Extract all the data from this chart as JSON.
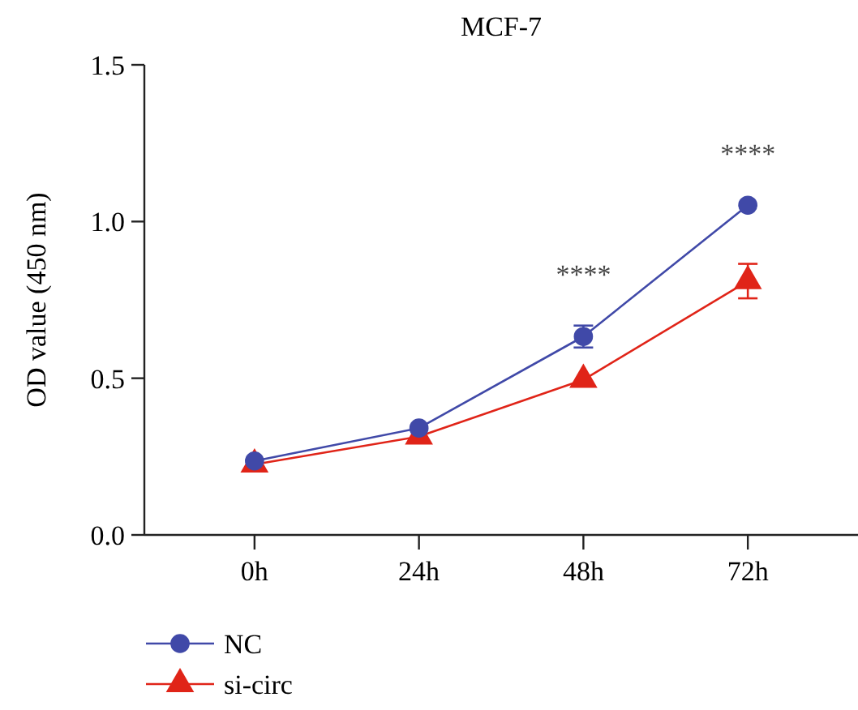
{
  "chart_data": {
    "type": "line",
    "title": "MCF-7",
    "ylabel": "OD value (450 nm)",
    "categories": [
      "0h",
      "24h",
      "48h",
      "72h"
    ],
    "series": [
      {
        "name": "NC",
        "color": "#4049a8",
        "values": [
          0.236,
          0.341,
          0.633,
          1.052
        ],
        "errors": [
          null,
          null,
          0.035,
          null
        ],
        "marker": "circle"
      },
      {
        "name": "si-circ",
        "color": "#e02418",
        "values": [
          0.225,
          0.314,
          0.495,
          0.81
        ],
        "errors": [
          null,
          null,
          null,
          0.055
        ],
        "marker": "triangle"
      }
    ],
    "ylim": [
      0,
      1.5
    ],
    "yticks": [
      {
        "value": 0,
        "label": "0.0"
      },
      {
        "value": 0.5,
        "label": "0.5"
      },
      {
        "value": 1,
        "label": "1.0"
      },
      {
        "value": 1.5,
        "label": "1.5"
      }
    ],
    "annotations": [
      "****",
      "****"
    ],
    "grid": false,
    "legend": "bottom left",
    "line_style": "solid"
  }
}
